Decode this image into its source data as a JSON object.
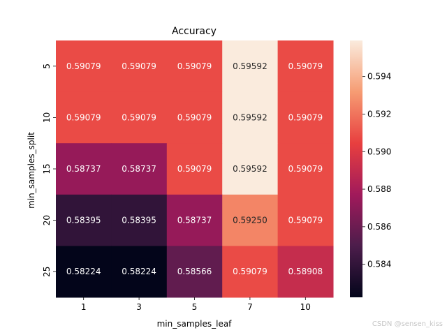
{
  "chart_data": {
    "type": "heatmap",
    "title": "Accuracy",
    "xlabel": "min_samples_leaf",
    "ylabel": "min_samples_split",
    "x_categories": [
      "1",
      "3",
      "5",
      "7",
      "10"
    ],
    "y_categories": [
      "5",
      "10",
      "15",
      "20",
      "25"
    ],
    "values": [
      [
        0.59079,
        0.59079,
        0.59079,
        0.59592,
        0.59079
      ],
      [
        0.59079,
        0.59079,
        0.59079,
        0.59592,
        0.59079
      ],
      [
        0.58737,
        0.58737,
        0.59079,
        0.59592,
        0.59079
      ],
      [
        0.58395,
        0.58395,
        0.58737,
        0.5925,
        0.59079
      ],
      [
        0.58224,
        0.58224,
        0.58566,
        0.59079,
        0.58908
      ]
    ],
    "cell_labels": [
      [
        "0.59079",
        "0.59079",
        "0.59079",
        "0.59592",
        "0.59079"
      ],
      [
        "0.59079",
        "0.59079",
        "0.59079",
        "0.59592",
        "0.59079"
      ],
      [
        "0.58737",
        "0.58737",
        "0.59079",
        "0.59592",
        "0.59079"
      ],
      [
        "0.58395",
        "0.58395",
        "0.58737",
        "0.59250",
        "0.59079"
      ],
      [
        "0.58224",
        "0.58224",
        "0.58566",
        "0.59079",
        "0.58908"
      ]
    ],
    "colormap": "rocket",
    "colorbar": {
      "range": [
        0.58224,
        0.59592
      ],
      "ticks": [
        0.584,
        0.586,
        0.588,
        0.59,
        0.592,
        0.594
      ],
      "tick_labels": [
        "0.584",
        "0.586",
        "0.588",
        "0.590",
        "0.592",
        "0.594"
      ]
    },
    "colormap_stops": [
      "#03051a",
      "#4c1d4b",
      "#a11a5b",
      "#e83f3f",
      "#f69c73",
      "#faebdd"
    ]
  },
  "watermark": "CSDN @sensen_kiss"
}
